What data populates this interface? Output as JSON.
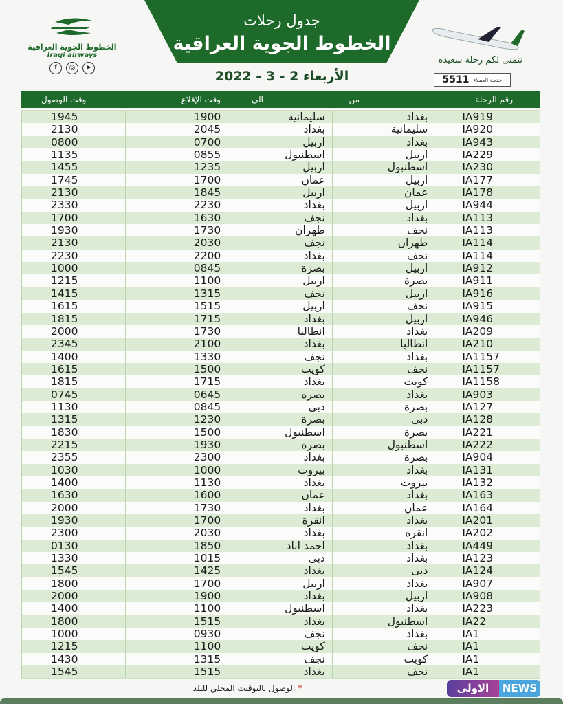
{
  "header": {
    "subtitle": "جدول رحلات",
    "title": "الخطوط الجوية العراقية",
    "date": "الأربعاء 2 - 3 - 2022",
    "wish": "نتمنى لكم رحلة سعيدة",
    "customer_service_label": "خدمة العملاء",
    "customer_service_number": "5511"
  },
  "logo": {
    "arabic": "الخطوط الجوية العراقية",
    "english": "Iraqi airways",
    "social": [
      "facebook-icon",
      "instagram-icon",
      "telegram-icon"
    ]
  },
  "colors": {
    "brand_green": "#1d6a2a",
    "row_green": "#dcebd3"
  },
  "table": {
    "columns": [
      "رقم الرحلة",
      "من",
      "الى",
      "وقت الإقلاع",
      "وقت الوصول"
    ],
    "rows": [
      [
        "IA919",
        "بغداد",
        "سليمانية",
        "1900",
        "1945"
      ],
      [
        "IA920",
        "سليمانية",
        "بغداد",
        "2045",
        "2130"
      ],
      [
        "IA943",
        "بغداد",
        "اربيل",
        "0700",
        "0800"
      ],
      [
        "IA229",
        "اربيل",
        "اسطنبول",
        "0855",
        "1135"
      ],
      [
        "IA230",
        "اسطنبول",
        "اربيل",
        "1235",
        "1455"
      ],
      [
        "IA177",
        "اربيل",
        "عمان",
        "1700",
        "1745"
      ],
      [
        "IA178",
        "عمان",
        "اربيل",
        "1845",
        "2130"
      ],
      [
        "IA944",
        "اربيل",
        "بغداد",
        "2230",
        "2330"
      ],
      [
        "IA113",
        "بغداد",
        "نجف",
        "1630",
        "1700"
      ],
      [
        "IA113",
        "نجف",
        "طهران",
        "1730",
        "1930"
      ],
      [
        "IA114",
        "طهران",
        "نجف",
        "2030",
        "2130"
      ],
      [
        "IA114",
        "نجف",
        "بغداد",
        "2200",
        "2230"
      ],
      [
        "IA912",
        "اربيل",
        "بصرة",
        "0845",
        "1000"
      ],
      [
        "IA911",
        "بصرة",
        "اربيل",
        "1100",
        "1215"
      ],
      [
        "IA916",
        "اربيل",
        "نجف",
        "1315",
        "1415"
      ],
      [
        "IA915",
        "نجف",
        "اربيل",
        "1515",
        "1615"
      ],
      [
        "IA946",
        "اربيل",
        "بغداد",
        "1715",
        "1815"
      ],
      [
        "IA209",
        "بغداد",
        "انطاليا",
        "1730",
        "2000"
      ],
      [
        "IA210",
        "انطاليا",
        "بغداد",
        "2100",
        "2345"
      ],
      [
        "IA1157",
        "بغداد",
        "نجف",
        "1330",
        "1400"
      ],
      [
        "IA1157",
        "نجف",
        "كويت",
        "1500",
        "1615"
      ],
      [
        "IA1158",
        "كويت",
        "بغداد",
        "1715",
        "1815"
      ],
      [
        "IA903",
        "بغداد",
        "بصرة",
        "0645",
        "0745"
      ],
      [
        "IA127",
        "بصرة",
        "دبى",
        "0845",
        "1130"
      ],
      [
        "IA128",
        "دبى",
        "بصرة",
        "1230",
        "1315"
      ],
      [
        "IA221",
        "بصرة",
        "اسطنبول",
        "1500",
        "1830"
      ],
      [
        "IA222",
        "اسطنبول",
        "بصرة",
        "1930",
        "2215"
      ],
      [
        "IA904",
        "بصرة",
        "بغداد",
        "2300",
        "2355"
      ],
      [
        "IA131",
        "بغداد",
        "بيروت",
        "1000",
        "1030"
      ],
      [
        "IA132",
        "بيروت",
        "بغداد",
        "1130",
        "1400"
      ],
      [
        "IA163",
        "بغداد",
        "عمان",
        "1600",
        "1630"
      ],
      [
        "IA164",
        "عمان",
        "بغداد",
        "1730",
        "2000"
      ],
      [
        "IA201",
        "بغداد",
        "انقرة",
        "1700",
        "1930"
      ],
      [
        "IA202",
        "انقرة",
        "بغداد",
        "2030",
        "2300"
      ],
      [
        "IA449",
        "بغداد",
        "احمد اباد",
        "1850",
        "0130"
      ],
      [
        "IA123",
        "بغداد",
        "دبى",
        "1015",
        "1330"
      ],
      [
        "IA124",
        "دبى",
        "بغداد",
        "1425",
        "1545"
      ],
      [
        "IA907",
        "بغداد",
        "اربيل",
        "1700",
        "1800"
      ],
      [
        "IA908",
        "اربيل",
        "بغداد",
        "1900",
        "2000"
      ],
      [
        "IA223",
        "بغداد",
        "اسطنبول",
        "1100",
        "1400"
      ],
      [
        "IA22",
        "اسطنبول",
        "بغداد",
        "1515",
        "1800"
      ],
      [
        "IA1",
        "بغداد",
        "نجف",
        "0930",
        "1000"
      ],
      [
        "IA1",
        "نجف",
        "كويت",
        "1100",
        "1215"
      ],
      [
        "IA1",
        "كويت",
        "نجف",
        "1315",
        "1430"
      ],
      [
        "IA1",
        "نجف",
        "بغداد",
        "1515",
        "1545"
      ]
    ]
  },
  "watermark": {
    "arabic": "الاولى نيوز",
    "english": "NEWS"
  },
  "footer": {
    "note": "الوصول بالتوقيت المحلي للبلد",
    "marker": "*"
  }
}
